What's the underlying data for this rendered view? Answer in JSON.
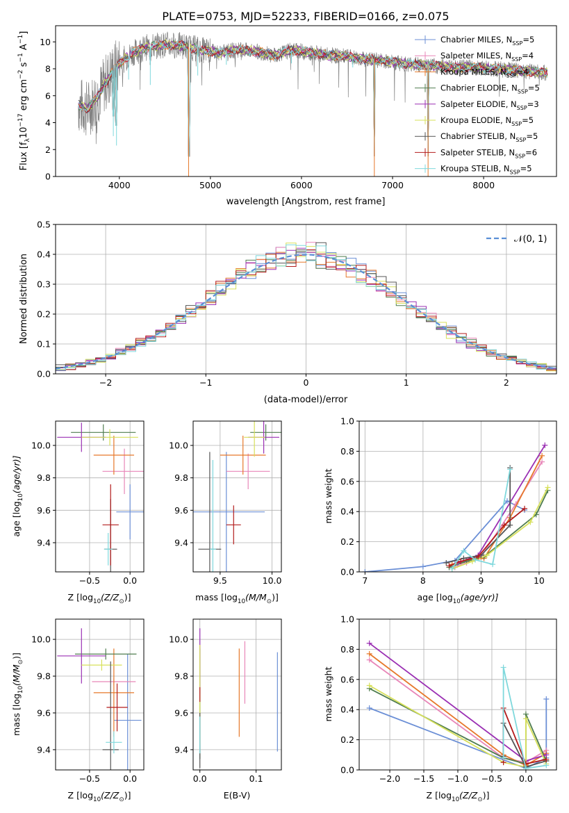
{
  "figure": {
    "title": "PLATE=0753, MJD=52233, FIBERID=0166, z=0.075"
  },
  "series_styles": [
    {
      "name": "Chabrier MILES",
      "nssp": "5",
      "color": "#6b8fd6"
    },
    {
      "name": "Salpeter MILES",
      "nssp": "4",
      "color": "#e886b8"
    },
    {
      "name": "Kroupa MILES",
      "nssp": "4",
      "color": "#e6782a"
    },
    {
      "name": "Chabrier ELODIE",
      "nssp": "5",
      "color": "#4f7d4f"
    },
    {
      "name": "Salpeter ELODIE",
      "nssp": "3",
      "color": "#9a2fb3"
    },
    {
      "name": "Kroupa ELODIE",
      "nssp": "5",
      "color": "#d7e05a"
    },
    {
      "name": "Chabrier STELIB",
      "nssp": "5",
      "color": "#555555"
    },
    {
      "name": "Salpeter STELIB",
      "nssp": "6",
      "color": "#b31b1b"
    },
    {
      "name": "Kroupa STELIB",
      "nssp": "5",
      "color": "#7fd8dc"
    }
  ],
  "chart_data": [
    {
      "id": "spectrum",
      "type": "line",
      "xlabel": "wavelength [Angstrom, rest frame]",
      "ylabel_parts": {
        "prefix": "Flux [f",
        "lambda": "λ",
        "mid": "10",
        "exp1": "−17",
        "mid2": " erg cm",
        "exp2": "−2",
        "mid3": " s",
        "exp3": "−1",
        "mid4": " A",
        "exp4": "−1",
        "suffix": "]"
      },
      "xlim": [
        3300,
        8800
      ],
      "ylim": [
        0,
        11.2
      ],
      "xticks": [
        4000,
        5000,
        6000,
        7000,
        8000
      ],
      "yticks": [
        0,
        2,
        4,
        6,
        8,
        10
      ],
      "legend_sub": "SSP",
      "legend_prefix": "N",
      "observed_color": "#808080",
      "continuum_x": [
        3550,
        3650,
        3750,
        3850,
        3950,
        4050,
        4150,
        4300,
        4500,
        4700,
        4900,
        5100,
        5300,
        5500,
        5700,
        5900,
        6100,
        6300,
        6500,
        6700,
        6900,
        7100,
        7300,
        7500,
        7700,
        7900,
        8100,
        8300,
        8500,
        8700
      ],
      "continuum_y": [
        5.3,
        5.0,
        5.8,
        7.0,
        8.0,
        8.7,
        9.2,
        9.6,
        9.8,
        9.7,
        9.4,
        9.2,
        9.4,
        9.3,
        9.0,
        9.4,
        9.2,
        9.0,
        8.9,
        8.7,
        8.6,
        8.4,
        8.3,
        8.2,
        8.1,
        8.1,
        8.0,
        7.9,
        7.8,
        7.7
      ],
      "absorption_lines": [
        [
          3934,
          3.0
        ],
        [
          3969,
          2.3
        ],
        [
          4102,
          7.2
        ],
        [
          4340,
          6.8
        ],
        [
          4761,
          0.0
        ],
        [
          4861,
          7.5
        ],
        [
          5175,
          8.3
        ],
        [
          5890,
          8.4
        ],
        [
          6563,
          8.1
        ],
        [
          6800,
          0.0
        ],
        [
          7390,
          0.0
        ]
      ]
    },
    {
      "id": "residuals",
      "type": "histogram",
      "xlabel": "(data-model)/error",
      "ylabel": "Normed distribution",
      "xlim": [
        -2.5,
        2.5
      ],
      "ylim": [
        0,
        0.5
      ],
      "xticks": [
        -2,
        -1,
        0,
        1,
        2
      ],
      "yticks": [
        0.0,
        0.1,
        0.2,
        0.3,
        0.4,
        0.5
      ],
      "legend": "𝒩(0, 1)",
      "bin_width": 0.1,
      "bin_start": -2.5,
      "gaussian_color": "#5a8fd6"
    },
    {
      "id": "z-age",
      "type": "errorbar",
      "xlabel": "Z [log",
      "xlabel_tail": "(Z/Z",
      "xlabel_end": ")]",
      "ylabel": "age  [log",
      "ylabel_tail": "(age/yr)]",
      "xlim": [
        -0.92,
        0.17
      ],
      "ylim": [
        9.22,
        10.15
      ],
      "xticks": [
        -0.5,
        0.0
      ],
      "yticks": [
        9.4,
        9.6,
        9.8,
        10.0
      ],
      "points": [
        {
          "x": 0.0,
          "y": 9.59,
          "xerr": 0.17,
          "yerr": 0.17
        },
        {
          "x": -0.07,
          "y": 9.84,
          "xerr": 0.27,
          "yerr": 0.14
        },
        {
          "x": -0.2,
          "y": 9.94,
          "xerr": 0.25,
          "yerr": 0.12
        },
        {
          "x": -0.33,
          "y": 10.08,
          "xerr": 0.4,
          "yerr": 0.05
        },
        {
          "x": -0.6,
          "y": 10.05,
          "xerr": 0.3,
          "yerr": 0.09
        },
        {
          "x": -0.25,
          "y": 10.05,
          "xerr": 0.35,
          "yerr": 0.05
        },
        {
          "x": -0.24,
          "y": 9.36,
          "xerr": 0.08,
          "yerr": 0.31
        },
        {
          "x": -0.24,
          "y": 9.51,
          "xerr": 0.1,
          "yerr": 0.25
        },
        {
          "x": -0.27,
          "y": 9.36,
          "xerr": 0.05,
          "yerr": 0.1
        }
      ]
    },
    {
      "id": "mass-age",
      "type": "errorbar",
      "xlabel": "mass [log",
      "xlabel_tail": "(M/M",
      "xlabel_end": ")]",
      "xlim": [
        9.24,
        10.09
      ],
      "ylim": [
        9.22,
        10.15
      ],
      "xticks": [
        9.5,
        10.0
      ],
      "yticks": [
        9.4,
        9.6,
        9.8,
        10.0
      ],
      "points": [
        {
          "x": 9.56,
          "y": 9.59,
          "xerr": 0.37,
          "yerr": 0.37
        },
        {
          "x": 9.77,
          "y": 9.84,
          "xerr": 0.21,
          "yerr": 0.11
        },
        {
          "x": 9.72,
          "y": 9.94,
          "xerr": 0.22,
          "yerr": 0.12
        },
        {
          "x": 9.94,
          "y": 10.08,
          "xerr": 0.15,
          "yerr": 0.05
        },
        {
          "x": 9.92,
          "y": 10.05,
          "xerr": 0.15,
          "yerr": 0.1
        },
        {
          "x": 9.83,
          "y": 10.05,
          "xerr": 0.1,
          "yerr": 0.12
        },
        {
          "x": 9.4,
          "y": 9.36,
          "xerr": 0.11,
          "yerr": 0.6
        },
        {
          "x": 9.63,
          "y": 9.51,
          "xerr": 0.07,
          "yerr": 0.12
        },
        {
          "x": 9.43,
          "y": 9.36,
          "xerr": 0.03,
          "yerr": 0.55
        }
      ]
    },
    {
      "id": "age-weight",
      "type": "line",
      "xlabel": "age  [log",
      "xlabel_tail": "(age/yr)]",
      "ylabel": "mass weight",
      "xlim": [
        6.9,
        10.3
      ],
      "ylim": [
        0,
        1.0
      ],
      "xticks": [
        7,
        8,
        9,
        10
      ],
      "yticks": [
        0.0,
        0.2,
        0.4,
        0.6,
        0.8,
        1.0
      ],
      "series": [
        {
          "x": [
            7.0,
            8.0,
            8.55,
            9.45,
            9.75
          ],
          "y": [
            0.0,
            0.035,
            0.075,
            0.47,
            0.41
          ]
        },
        {
          "x": [
            8.55,
            8.75,
            9.0,
            9.6,
            10.05
          ],
          "y": [
            0.03,
            0.06,
            0.1,
            0.45,
            0.73
          ]
        },
        {
          "x": [
            8.5,
            8.8,
            9.05,
            9.5,
            10.05
          ],
          "y": [
            0.05,
            0.08,
            0.09,
            0.36,
            0.77
          ]
        },
        {
          "x": [
            8.45,
            8.75,
            9.05,
            9.95,
            10.15
          ],
          "y": [
            0.03,
            0.07,
            0.1,
            0.38,
            0.54
          ]
        },
        {
          "x": [
            8.6,
            8.95,
            10.1
          ],
          "y": [
            0.06,
            0.11,
            0.84
          ]
        },
        {
          "x": [
            8.5,
            8.85,
            9.1,
            9.85,
            10.15
          ],
          "y": [
            0.02,
            0.07,
            0.11,
            0.33,
            0.56
          ]
        },
        {
          "x": [
            8.4,
            8.7,
            9.0,
            9.5,
            9.5
          ],
          "y": [
            0.06,
            0.09,
            0.11,
            0.31,
            0.69
          ]
        },
        {
          "x": [
            8.45,
            8.65,
            8.95,
            9.4,
            9.75
          ],
          "y": [
            0.04,
            0.07,
            0.1,
            0.31,
            0.42
          ]
        },
        {
          "x": [
            8.5,
            8.7,
            8.9,
            9.2,
            9.5
          ],
          "y": [
            0.02,
            0.14,
            0.08,
            0.05,
            0.68
          ]
        }
      ]
    },
    {
      "id": "z-mass",
      "type": "errorbar",
      "xlabel": "Z [log",
      "xlabel_tail": "(Z/Z",
      "xlabel_end": ")]",
      "ylabel": "mass [log",
      "ylabel_tail": "(M/M",
      "ylabel_end": ")]",
      "xlim": [
        -0.92,
        0.17
      ],
      "ylim": [
        9.29,
        10.11
      ],
      "xticks": [
        -0.5,
        0.0
      ],
      "yticks": [
        9.4,
        9.6,
        9.8,
        10.0
      ],
      "points": [
        {
          "x": -0.03,
          "y": 9.56,
          "xerr": 0.17,
          "yerr": 0.36
        },
        {
          "x": -0.2,
          "y": 9.77,
          "xerr": 0.27,
          "yerr": 0.02
        },
        {
          "x": -0.2,
          "y": 9.71,
          "xerr": 0.25,
          "yerr": 0.24
        },
        {
          "x": -0.3,
          "y": 9.92,
          "xerr": 0.38,
          "yerr": 0.03
        },
        {
          "x": -0.6,
          "y": 9.91,
          "xerr": 0.3,
          "yerr": 0.15
        },
        {
          "x": -0.35,
          "y": 9.86,
          "xerr": 0.25,
          "yerr": 0.03
        },
        {
          "x": -0.24,
          "y": 9.4,
          "xerr": 0.1,
          "yerr": 0.48
        },
        {
          "x": -0.16,
          "y": 9.63,
          "xerr": 0.13,
          "yerr": 0.13
        },
        {
          "x": -0.2,
          "y": 9.44,
          "xerr": 0.1,
          "yerr": 0.06
        }
      ]
    },
    {
      "id": "ebv-mass",
      "type": "errorbar",
      "xlabel": "E(B-V)",
      "xlim": [
        -0.012,
        0.145
      ],
      "ylim": [
        9.29,
        10.11
      ],
      "xticks": [
        0.0,
        0.1
      ],
      "yticks": [
        9.4,
        9.6,
        9.8,
        10.0
      ],
      "points": [
        {
          "x": 0.138,
          "y": 9.66,
          "xerr": 0,
          "yerr": 0.27
        },
        {
          "x": 0.08,
          "y": 9.82,
          "xerr": 0,
          "yerr": 0.17
        },
        {
          "x": 0.07,
          "y": 9.71,
          "xerr": 0,
          "yerr": 0.24
        },
        {
          "x": 0.0,
          "y": 9.65,
          "xerr": 0,
          "yerr": 0.3
        },
        {
          "x": 0.0,
          "y": 9.88,
          "xerr": 0,
          "yerr": 0.18
        },
        {
          "x": 0.0,
          "y": 9.7,
          "xerr": 0,
          "yerr": 0.27
        },
        {
          "x": 0.0,
          "y": 9.45,
          "xerr": 0,
          "yerr": 0.15
        },
        {
          "x": 0.0,
          "y": 9.7,
          "xerr": 0,
          "yerr": 0.04
        },
        {
          "x": 0.0,
          "y": 9.48,
          "xerr": 0,
          "yerr": 0.1
        }
      ]
    },
    {
      "id": "z-weight",
      "type": "line",
      "xlabel": "Z [log",
      "xlabel_tail": "(Z/Z",
      "xlabel_end": ")]",
      "ylabel": "mass weight",
      "xlim": [
        -2.45,
        0.45
      ],
      "ylim": [
        0,
        1.0
      ],
      "xticks": [
        -2.0,
        -1.5,
        -1.0,
        -0.5,
        0.0
      ],
      "yticks": [
        0.0,
        0.2,
        0.4,
        0.6,
        0.8,
        1.0
      ],
      "series": [
        {
          "x": [
            -2.3,
            0.0,
            0.3,
            0.3
          ],
          "y": [
            0.41,
            0.01,
            0.08,
            0.47
          ]
        },
        {
          "x": [
            -2.3,
            -0.33,
            0.0,
            0.3
          ],
          "y": [
            0.73,
            0.08,
            0.05,
            0.13
          ]
        },
        {
          "x": [
            -2.3,
            -0.33,
            0.0,
            0.3
          ],
          "y": [
            0.77,
            0.1,
            0.03,
            0.11
          ]
        },
        {
          "x": [
            -2.3,
            -0.33,
            0.0,
            0.0,
            0.3
          ],
          "y": [
            0.54,
            0.08,
            0.04,
            0.37,
            0.06
          ]
        },
        {
          "x": [
            -2.3,
            0.0,
            0.3
          ],
          "y": [
            0.84,
            0.06,
            0.1
          ]
        },
        {
          "x": [
            -2.3,
            -0.33,
            0.0,
            0.0,
            0.3
          ],
          "y": [
            0.56,
            0.05,
            0.02,
            0.34,
            0.04
          ]
        },
        {
          "x": [
            -0.33,
            -0.33,
            0.0,
            0.3
          ],
          "y": [
            0.09,
            0.31,
            0.02,
            0.06
          ]
        },
        {
          "x": [
            -0.33,
            -0.33,
            0.0,
            0.3
          ],
          "y": [
            0.05,
            0.41,
            0.04,
            0.07
          ]
        },
        {
          "x": [
            -0.33,
            -0.33,
            0.0,
            0.3
          ],
          "y": [
            0.08,
            0.68,
            0.01,
            0.03
          ]
        }
      ]
    }
  ]
}
